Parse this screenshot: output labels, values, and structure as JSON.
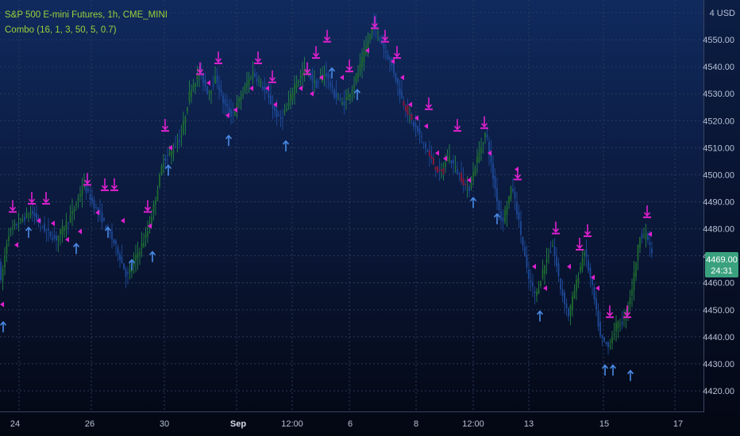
{
  "legend": {
    "symbol": "S&P 500 E-mini Futures, 1h, CME_MINI",
    "indicator": "Combo (16, 1, 3, 50, 5, 0.7)"
  },
  "currency": "USD",
  "price_badge": {
    "price": "4469.00",
    "countdown": "24:31",
    "color": "#3aa17e"
  },
  "colors": {
    "bull_wick": "#2a9d4a",
    "body_up": "#1f6b2e",
    "body_down": "#1e4a9a",
    "body_red": "#8b1a3a",
    "sell_marker": "#e020d0",
    "buy_marker": "#4a8ce8"
  },
  "chart_data": {
    "type": "candlestick",
    "ylim": [
      4415,
      4568
    ],
    "y_ticks": [
      4420,
      4430,
      4440,
      4450,
      4460,
      4470,
      4480,
      4490,
      4500,
      4510,
      4520,
      4530,
      4540,
      4550,
      4560
    ],
    "x_tick_labels": [
      "24",
      "26",
      "30",
      "Sep",
      "12:00",
      "6",
      "8",
      "12:00",
      "13",
      "15",
      "17"
    ],
    "path_points": [
      [
        0,
        4458
      ],
      [
        10,
        4478
      ],
      [
        22,
        4482
      ],
      [
        40,
        4486
      ],
      [
        55,
        4480
      ],
      [
        70,
        4476
      ],
      [
        90,
        4485
      ],
      [
        105,
        4496
      ],
      [
        120,
        4488
      ],
      [
        135,
        4480
      ],
      [
        148,
        4472
      ],
      [
        160,
        4462
      ],
      [
        172,
        4470
      ],
      [
        185,
        4478
      ],
      [
        195,
        4490
      ],
      [
        205,
        4505
      ],
      [
        215,
        4508
      ],
      [
        228,
        4514
      ],
      [
        240,
        4532
      ],
      [
        252,
        4538
      ],
      [
        262,
        4530
      ],
      [
        272,
        4536
      ],
      [
        282,
        4526
      ],
      [
        292,
        4522
      ],
      [
        305,
        4530
      ],
      [
        318,
        4538
      ],
      [
        330,
        4533
      ],
      [
        342,
        4526
      ],
      [
        352,
        4520
      ],
      [
        362,
        4525
      ],
      [
        372,
        4534
      ],
      [
        385,
        4539
      ],
      [
        398,
        4533
      ],
      [
        410,
        4538
      ],
      [
        420,
        4530
      ],
      [
        432,
        4526
      ],
      [
        445,
        4533
      ],
      [
        458,
        4544
      ],
      [
        470,
        4556
      ],
      [
        482,
        4548
      ],
      [
        494,
        4540
      ],
      [
        506,
        4528
      ],
      [
        518,
        4520
      ],
      [
        530,
        4514
      ],
      [
        542,
        4506
      ],
      [
        554,
        4500
      ],
      [
        565,
        4507
      ],
      [
        578,
        4500
      ],
      [
        590,
        4494
      ],
      [
        600,
        4505
      ],
      [
        612,
        4516
      ],
      [
        622,
        4497
      ],
      [
        632,
        4482
      ],
      [
        645,
        4496
      ],
      [
        655,
        4480
      ],
      [
        665,
        4462
      ],
      [
        675,
        4455
      ],
      [
        685,
        4466
      ],
      [
        696,
        4474
      ],
      [
        706,
        4458
      ],
      [
        716,
        4448
      ],
      [
        726,
        4460
      ],
      [
        736,
        4472
      ],
      [
        746,
        4458
      ],
      [
        756,
        4440
      ],
      [
        766,
        4436
      ],
      [
        776,
        4444
      ],
      [
        786,
        4446
      ],
      [
        796,
        4458
      ],
      [
        806,
        4478
      ],
      [
        815,
        4477
      ],
      [
        823,
        4469
      ]
    ],
    "sell_signals": [
      [
        16,
        4488
      ],
      [
        40,
        4491
      ],
      [
        58,
        4491
      ],
      [
        110,
        4498
      ],
      [
        132,
        4496
      ],
      [
        144,
        4496
      ],
      [
        186,
        4488
      ],
      [
        208,
        4518
      ],
      [
        252,
        4539
      ],
      [
        275,
        4543
      ],
      [
        325,
        4543
      ],
      [
        343,
        4536
      ],
      [
        387,
        4539
      ],
      [
        398,
        4545
      ],
      [
        412,
        4551
      ],
      [
        440,
        4540
      ],
      [
        472,
        4556
      ],
      [
        485,
        4551
      ],
      [
        500,
        4545
      ],
      [
        540,
        4526
      ],
      [
        576,
        4518
      ],
      [
        610,
        4519
      ],
      [
        652,
        4500
      ],
      [
        700,
        4480
      ],
      [
        730,
        4474
      ],
      [
        740,
        4479
      ],
      [
        768,
        4449
      ],
      [
        790,
        4449
      ],
      [
        815,
        4486
      ]
    ],
    "buy_signals": [
      [
        4,
        4444
      ],
      [
        36,
        4479
      ],
      [
        96,
        4473
      ],
      [
        136,
        4479
      ],
      [
        166,
        4467
      ],
      [
        192,
        4470
      ],
      [
        212,
        4502
      ],
      [
        288,
        4513
      ],
      [
        360,
        4511
      ],
      [
        418,
        4538
      ],
      [
        450,
        4530
      ],
      [
        596,
        4490
      ],
      [
        626,
        4484
      ],
      [
        680,
        4448
      ],
      [
        762,
        4428
      ],
      [
        772,
        4428
      ],
      [
        794,
        4426
      ]
    ],
    "mini_markers": [
      [
        2,
        4452
      ],
      [
        20,
        4474
      ],
      [
        48,
        4483
      ],
      [
        66,
        4482
      ],
      [
        84,
        4476
      ],
      [
        100,
        4479
      ],
      [
        122,
        4486
      ],
      [
        154,
        4483
      ],
      [
        188,
        4481
      ],
      [
        214,
        4510
      ],
      [
        262,
        4534
      ],
      [
        286,
        4522
      ],
      [
        296,
        4524
      ],
      [
        316,
        4532
      ],
      [
        336,
        4532
      ],
      [
        346,
        4526
      ],
      [
        378,
        4532
      ],
      [
        392,
        4530
      ],
      [
        404,
        4536
      ],
      [
        430,
        4536
      ],
      [
        462,
        4546
      ],
      [
        494,
        4542
      ],
      [
        506,
        4536
      ],
      [
        516,
        4526
      ],
      [
        524,
        4521
      ],
      [
        536,
        4518
      ],
      [
        550,
        4508
      ],
      [
        560,
        4506
      ],
      [
        590,
        4498
      ],
      [
        616,
        4508
      ],
      [
        650,
        4502
      ],
      [
        672,
        4466
      ],
      [
        686,
        4458
      ],
      [
        716,
        4466
      ],
      [
        746,
        4462
      ],
      [
        752,
        4458
      ],
      [
        818,
        4478
      ]
    ]
  }
}
